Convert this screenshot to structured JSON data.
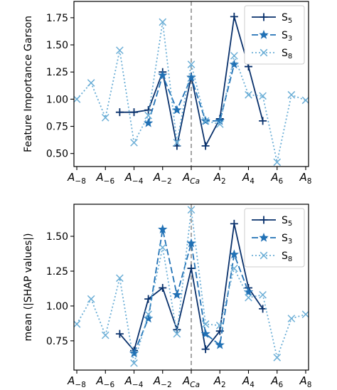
{
  "chart_data": [
    {
      "type": "line",
      "ylabel": "Feature Importance Garson",
      "ylim": [
        0.38,
        1.9
      ],
      "yticks": [
        0.5,
        0.75,
        1.0,
        1.25,
        1.5,
        1.75
      ],
      "ytick_labels": [
        "0.50",
        "0.75",
        "1.00",
        "1.25",
        "1.50",
        "1.75"
      ],
      "xlim": [
        -8.2,
        8.2
      ],
      "xticks": [
        -8,
        -6,
        -4,
        -2,
        0,
        2,
        4,
        6,
        8
      ],
      "xtick_labels": [
        {
          "base": "A",
          "sub": "−8"
        },
        {
          "base": "A",
          "sub": "−6"
        },
        {
          "base": "A",
          "sub": "−4"
        },
        {
          "base": "A",
          "sub": "−2"
        },
        {
          "base": "A",
          "sub": "Ca"
        },
        {
          "base": "A",
          "sub": "2"
        },
        {
          "base": "A",
          "sub": "4"
        },
        {
          "base": "A",
          "sub": "6"
        },
        {
          "base": "A",
          "sub": "8"
        }
      ],
      "vline_x": 0,
      "legend": "top-right",
      "series": [
        {
          "name": "S",
          "sub": "5",
          "color": "#08306b",
          "style": "solid",
          "marker": "plus",
          "x": [
            -5,
            -4,
            -3,
            -2,
            -1,
            0,
            1,
            2,
            3,
            4,
            5
          ],
          "y": [
            0.88,
            0.88,
            0.9,
            1.25,
            0.57,
            1.21,
            0.57,
            0.82,
            1.76,
            1.3,
            0.8
          ]
        },
        {
          "name": "S",
          "sub": "3",
          "color": "#2171b5",
          "style": "dashed",
          "marker": "star",
          "x": [
            -3,
            -2,
            -1,
            0,
            1,
            2,
            3
          ],
          "y": [
            0.78,
            1.22,
            0.9,
            1.2,
            0.8,
            0.8,
            1.32
          ]
        },
        {
          "name": "S",
          "sub": "8",
          "color": "#6baed6",
          "style": "dotted",
          "marker": "x",
          "x": [
            -8,
            -7,
            -6,
            -5,
            -4,
            -3,
            -2,
            -1,
            0,
            1,
            2,
            3,
            4,
            5,
            6,
            7,
            8
          ],
          "y": [
            1.0,
            1.15,
            0.83,
            1.45,
            0.6,
            0.85,
            1.71,
            0.6,
            1.32,
            0.8,
            0.77,
            1.4,
            1.04,
            1.03,
            0.42,
            1.04,
            0.99
          ]
        }
      ]
    },
    {
      "type": "line",
      "ylabel": "mean (|SHAP values|)",
      "ylim": [
        0.54,
        1.73
      ],
      "yticks": [
        0.75,
        1.0,
        1.25,
        1.5
      ],
      "ytick_labels": [
        "0.75",
        "1.00",
        "1.25",
        "1.50"
      ],
      "xlim": [
        -8.2,
        8.2
      ],
      "xticks": [
        -8,
        -6,
        -4,
        -2,
        0,
        2,
        4,
        6,
        8
      ],
      "xtick_labels": [
        {
          "base": "A",
          "sub": "−8"
        },
        {
          "base": "A",
          "sub": "−6"
        },
        {
          "base": "A",
          "sub": "−4"
        },
        {
          "base": "A",
          "sub": "−2"
        },
        {
          "base": "A",
          "sub": "Ca"
        },
        {
          "base": "A",
          "sub": "2"
        },
        {
          "base": "A",
          "sub": "4"
        },
        {
          "base": "A",
          "sub": "6"
        },
        {
          "base": "A",
          "sub": "8"
        }
      ],
      "vline_x": 0,
      "legend": "top-right",
      "series": [
        {
          "name": "S",
          "sub": "5",
          "color": "#08306b",
          "style": "solid",
          "marker": "plus",
          "x": [
            -5,
            -4,
            -3,
            -2,
            -1,
            0,
            1,
            2,
            3,
            4,
            5
          ],
          "y": [
            0.8,
            0.68,
            1.05,
            1.13,
            0.83,
            1.27,
            0.69,
            0.82,
            1.59,
            1.13,
            0.98
          ]
        },
        {
          "name": "S",
          "sub": "3",
          "color": "#2171b5",
          "style": "dashed",
          "marker": "star",
          "x": [
            -4,
            -3,
            -2,
            -1,
            0,
            1,
            2,
            3,
            4
          ],
          "y": [
            0.66,
            0.91,
            1.55,
            1.08,
            1.45,
            0.8,
            0.72,
            1.37,
            1.1
          ]
        },
        {
          "name": "S",
          "sub": "8",
          "color": "#6baed6",
          "style": "dotted",
          "marker": "x",
          "x": [
            -8,
            -7,
            -6,
            -5,
            -4,
            -3,
            -2,
            -1,
            0,
            1,
            2,
            3,
            4,
            5,
            6,
            7,
            8
          ],
          "y": [
            0.87,
            1.05,
            0.79,
            1.2,
            0.59,
            0.94,
            1.42,
            0.8,
            1.69,
            0.87,
            0.86,
            1.27,
            1.06,
            1.08,
            0.63,
            0.91,
            0.94
          ]
        }
      ]
    }
  ]
}
